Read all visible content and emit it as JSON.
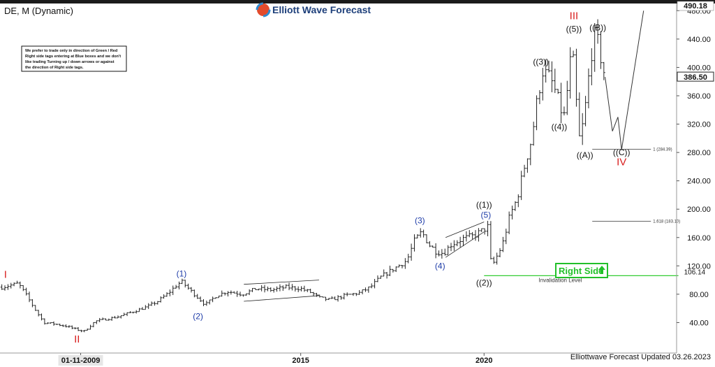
{
  "header": {
    "symbol_label": "DE, M (Dynamic)",
    "brand_name": "Elliott Wave Forecast"
  },
  "footer": {
    "updated_text": "Elliottwave Forecast Updated 03.26.2023"
  },
  "disclaimer": {
    "lines": [
      "We prefer to trade only in direction of Green / Red",
      "Right side tags entering at Blue boxes and we don't",
      "like trading Turning up / down arrows or against",
      "the direction of Right side tags."
    ]
  },
  "right_side_tag": {
    "label": "Right Side",
    "color": "#22c02a"
  },
  "colors": {
    "price_bar": "#222222",
    "wave_red": "#d81e1e",
    "wave_blue": "#1e3ca8",
    "wave_black": "#111111",
    "invalidation_line": "#33cc33",
    "axis_label_bg": "#ffffff"
  },
  "chart_data": {
    "type": "ohlc",
    "symbol": "DE",
    "timeframe": "M",
    "ylim": [
      0,
      490.18
    ],
    "y_ticks": [
      40,
      80,
      120,
      160,
      200,
      240,
      280,
      320,
      360,
      400,
      440,
      480
    ],
    "y_top_label": "490.18",
    "last_price_label": "386.50",
    "last_price": 386.5,
    "x_ticks": [
      {
        "label": "01-11-2009",
        "time": 2009.0,
        "highlight": true
      },
      {
        "label": "2015",
        "time": 2015.0,
        "highlight": false
      },
      {
        "label": "2020",
        "time": 2020.0,
        "highlight": false
      }
    ],
    "series_points": [
      [
        2006.85,
        90
      ],
      [
        2007.3,
        95
      ],
      [
        2007.5,
        80
      ],
      [
        2007.8,
        55
      ],
      [
        2008.0,
        40
      ],
      [
        2008.3,
        38
      ],
      [
        2008.6,
        35
      ],
      [
        2008.9,
        30
      ],
      [
        2009.1,
        28
      ],
      [
        2009.4,
        42
      ],
      [
        2009.7,
        45
      ],
      [
        2010.0,
        48
      ],
      [
        2010.4,
        55
      ],
      [
        2010.8,
        62
      ],
      [
        2011.1,
        70
      ],
      [
        2011.4,
        82
      ],
      [
        2011.6,
        92
      ],
      [
        2011.75,
        98
      ],
      [
        2012.0,
        85
      ],
      [
        2012.2,
        75
      ],
      [
        2012.4,
        65
      ],
      [
        2012.7,
        78
      ],
      [
        2013.0,
        84
      ],
      [
        2013.4,
        80
      ],
      [
        2013.8,
        88
      ],
      [
        2014.2,
        86
      ],
      [
        2014.6,
        90
      ],
      [
        2015.0,
        88
      ],
      [
        2015.3,
        82
      ],
      [
        2015.5,
        75
      ],
      [
        2015.8,
        72
      ],
      [
        2016.2,
        78
      ],
      [
        2016.6,
        82
      ],
      [
        2016.9,
        90
      ],
      [
        2017.2,
        105
      ],
      [
        2017.6,
        118
      ],
      [
        2017.9,
        128
      ],
      [
        2018.1,
        155
      ],
      [
        2018.3,
        168
      ],
      [
        2018.5,
        150
      ],
      [
        2018.7,
        140
      ],
      [
        2018.9,
        138
      ],
      [
        2019.1,
        150
      ],
      [
        2019.4,
        158
      ],
      [
        2019.7,
        162
      ],
      [
        2019.9,
        168
      ],
      [
        2020.1,
        175
      ],
      [
        2020.2,
        118
      ],
      [
        2020.3,
        128
      ],
      [
        2020.5,
        150
      ],
      [
        2020.7,
        190
      ],
      [
        2020.9,
        215
      ],
      [
        2021.1,
        260
      ],
      [
        2021.3,
        300
      ],
      [
        2021.45,
        355
      ],
      [
        2021.6,
        395
      ],
      [
        2021.8,
        385
      ],
      [
        2021.95,
        365
      ],
      [
        2022.1,
        340
      ],
      [
        2022.2,
        330
      ],
      [
        2022.3,
        385
      ],
      [
        2022.4,
        430
      ],
      [
        2022.5,
        360
      ],
      [
        2022.6,
        300
      ],
      [
        2022.7,
        320
      ],
      [
        2022.8,
        360
      ],
      [
        2022.9,
        410
      ],
      [
        2023.0,
        445
      ],
      [
        2023.1,
        435
      ],
      [
        2023.2,
        410
      ],
      [
        2023.3,
        386.5
      ]
    ],
    "wave_labels": [
      {
        "text": "I",
        "time": 2006.95,
        "price": 103,
        "color_key": "wave_red",
        "size": 15
      },
      {
        "text": "II",
        "time": 2008.9,
        "price": 12,
        "color_key": "wave_red",
        "size": 15
      },
      {
        "text": "III",
        "time": 2022.45,
        "price": 468,
        "color_key": "wave_red",
        "size": 15
      },
      {
        "text": "IV",
        "time": 2023.75,
        "price": 262,
        "color_key": "wave_red",
        "size": 15
      },
      {
        "text": "(1)",
        "time": 2011.75,
        "price": 105,
        "color_key": "wave_blue",
        "size": 12
      },
      {
        "text": "(2)",
        "time": 2012.2,
        "price": 45,
        "color_key": "wave_blue",
        "size": 12
      },
      {
        "text": "(3)",
        "time": 2018.25,
        "price": 180,
        "color_key": "wave_blue",
        "size": 12
      },
      {
        "text": "(4)",
        "time": 2018.8,
        "price": 116,
        "color_key": "wave_blue",
        "size": 12
      },
      {
        "text": "(5)",
        "time": 2020.05,
        "price": 188,
        "color_key": "wave_blue",
        "size": 12
      },
      {
        "text": "((1))",
        "time": 2020.0,
        "price": 202,
        "color_key": "wave_black",
        "size": 12
      },
      {
        "text": "((2))",
        "time": 2020.0,
        "price": 92,
        "color_key": "wave_black",
        "size": 12
      },
      {
        "text": "((3))",
        "time": 2021.55,
        "price": 404,
        "color_key": "wave_black",
        "size": 12
      },
      {
        "text": "((4))",
        "time": 2022.05,
        "price": 312,
        "color_key": "wave_black",
        "size": 12
      },
      {
        "text": "((5))",
        "time": 2022.45,
        "price": 450,
        "color_key": "wave_black",
        "size": 12
      },
      {
        "text": "((A))",
        "time": 2022.75,
        "price": 272,
        "color_key": "wave_black",
        "size": 12
      },
      {
        "text": "((B))",
        "time": 2023.1,
        "price": 452,
        "color_key": "wave_black",
        "size": 12
      },
      {
        "text": "((C))",
        "time": 2023.75,
        "price": 276,
        "color_key": "wave_black",
        "size": 12
      }
    ],
    "fib_levels": [
      {
        "label": "1 (284.39)",
        "price": 284.39,
        "time_start": 2022.95,
        "time_end": 2024.55
      },
      {
        "label": "1.618 (183.10)",
        "price": 183.1,
        "time_start": 2022.95,
        "time_end": 2024.55
      }
    ],
    "invalidation": {
      "label": "Invalidation Level",
      "value_label": "106.14",
      "price": 106.14,
      "time_start": 2020.0,
      "time_end": 2025.3
    },
    "projection_path": [
      [
        2023.3,
        386.5
      ],
      [
        2023.5,
        310
      ],
      [
        2023.65,
        330
      ],
      [
        2023.75,
        284
      ],
      [
        2024.35,
        480
      ]
    ],
    "triangles": [
      {
        "points": [
          [
            2013.45,
            94
          ],
          [
            2015.5,
            100
          ],
          [
            2013.45,
            70
          ],
          [
            2015.5,
            78
          ]
        ]
      },
      {
        "points": [
          [
            2018.95,
            160
          ],
          [
            2020.0,
            182
          ],
          [
            2018.95,
            132
          ],
          [
            2020.0,
            168
          ]
        ]
      }
    ]
  }
}
